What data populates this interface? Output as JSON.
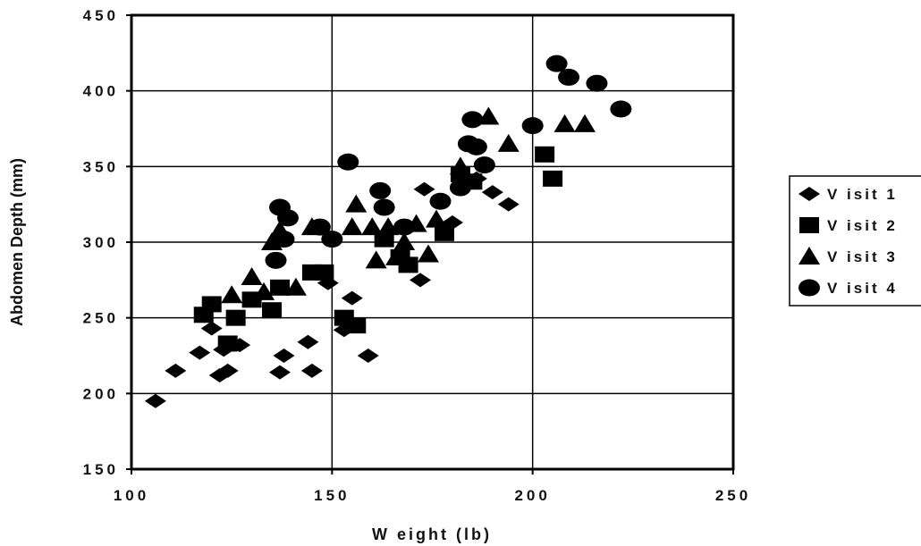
{
  "chart_data": {
    "type": "scatter",
    "title": "",
    "xlabel": "W eight (lb)",
    "ylabel": "Abdomen Depth (mm)",
    "xlim": [
      100,
      250
    ],
    "ylim": [
      150,
      450
    ],
    "x_ticks": [
      100,
      150,
      200,
      250
    ],
    "y_ticks": [
      150,
      200,
      250,
      300,
      350,
      400,
      450
    ],
    "grid": true,
    "legend_position": "right",
    "series": [
      {
        "name": "V isit 1",
        "marker": "diamond",
        "points": [
          [
            106,
            195
          ],
          [
            111,
            215
          ],
          [
            117,
            227
          ],
          [
            120,
            243
          ],
          [
            122,
            212
          ],
          [
            123,
            229
          ],
          [
            124,
            215
          ],
          [
            127,
            232
          ],
          [
            137,
            214
          ],
          [
            138,
            225
          ],
          [
            144,
            234
          ],
          [
            145,
            215
          ],
          [
            149,
            273
          ],
          [
            153,
            242
          ],
          [
            155,
            263
          ],
          [
            159,
            225
          ],
          [
            172,
            275
          ],
          [
            173,
            335
          ],
          [
            180,
            313
          ],
          [
            186,
            342
          ],
          [
            190,
            333
          ],
          [
            194,
            325
          ]
        ]
      },
      {
        "name": "V isit 2",
        "marker": "square",
        "points": [
          [
            118,
            252
          ],
          [
            120,
            259
          ],
          [
            124,
            233
          ],
          [
            126,
            250
          ],
          [
            130,
            262
          ],
          [
            135,
            255
          ],
          [
            137,
            270
          ],
          [
            145,
            280
          ],
          [
            148,
            280
          ],
          [
            153,
            250
          ],
          [
            156,
            245
          ],
          [
            163,
            302
          ],
          [
            167,
            290
          ],
          [
            169,
            285
          ],
          [
            178,
            306
          ],
          [
            182,
            345
          ],
          [
            185,
            340
          ],
          [
            203,
            358
          ],
          [
            205,
            342
          ]
        ]
      },
      {
        "name": "V isit 3",
        "marker": "triangle",
        "points": [
          [
            125,
            265
          ],
          [
            130,
            277
          ],
          [
            133,
            267
          ],
          [
            135,
            300
          ],
          [
            137,
            308
          ],
          [
            141,
            270
          ],
          [
            145,
            310
          ],
          [
            155,
            310
          ],
          [
            156,
            325
          ],
          [
            160,
            310
          ],
          [
            161,
            288
          ],
          [
            164,
            310
          ],
          [
            166,
            290
          ],
          [
            168,
            300
          ],
          [
            171,
            312
          ],
          [
            174,
            292
          ],
          [
            176,
            315
          ],
          [
            182,
            350
          ],
          [
            189,
            383
          ],
          [
            194,
            365
          ],
          [
            208,
            378
          ],
          [
            213,
            378
          ]
        ]
      },
      {
        "name": "V isit 4",
        "marker": "circle",
        "points": [
          [
            136,
            288
          ],
          [
            137,
            323
          ],
          [
            138,
            302
          ],
          [
            139,
            316
          ],
          [
            147,
            310
          ],
          [
            150,
            302
          ],
          [
            154,
            353
          ],
          [
            162,
            334
          ],
          [
            163,
            323
          ],
          [
            168,
            310
          ],
          [
            177,
            327
          ],
          [
            182,
            336
          ],
          [
            184,
            365
          ],
          [
            186,
            363
          ],
          [
            185,
            381
          ],
          [
            188,
            351
          ],
          [
            200,
            377
          ],
          [
            206,
            418
          ],
          [
            209,
            409
          ],
          [
            216,
            405
          ],
          [
            222,
            388
          ]
        ]
      }
    ]
  }
}
